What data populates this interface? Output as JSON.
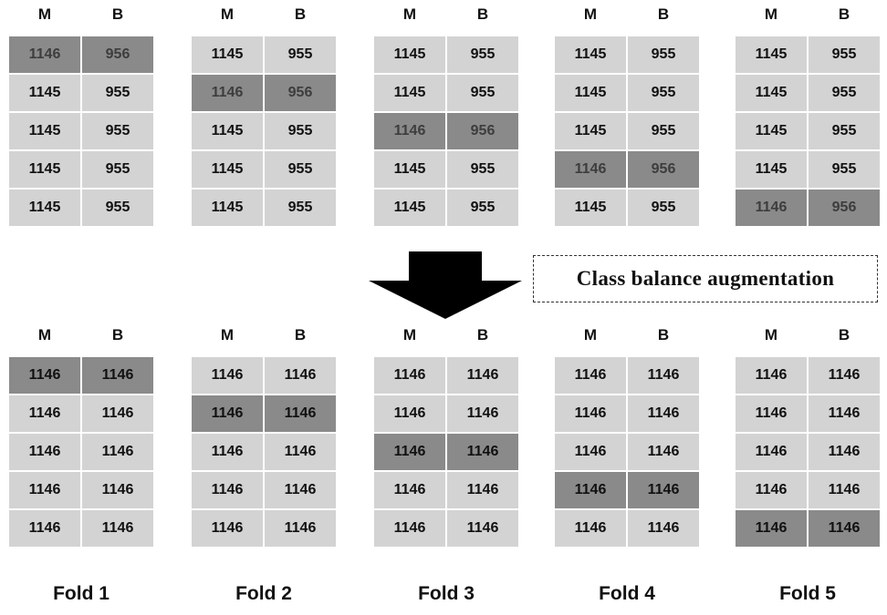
{
  "colors": {
    "cell": "#d3d3d3",
    "highlight_cell": "#8a8a8a",
    "text": "#111111"
  },
  "headers": {
    "m": "M",
    "b": "B"
  },
  "callout": {
    "label": "Class balance augmentation"
  },
  "arrow": {
    "direction": "down",
    "icon": "down-arrow-icon"
  },
  "top": {
    "folds": [
      {
        "rows": [
          [
            "1146",
            "956"
          ],
          [
            "1145",
            "955"
          ],
          [
            "1145",
            "955"
          ],
          [
            "1145",
            "955"
          ],
          [
            "1145",
            "955"
          ]
        ],
        "highlight_row": 0
      },
      {
        "rows": [
          [
            "1145",
            "955"
          ],
          [
            "1146",
            "956"
          ],
          [
            "1145",
            "955"
          ],
          [
            "1145",
            "955"
          ],
          [
            "1145",
            "955"
          ]
        ],
        "highlight_row": 1
      },
      {
        "rows": [
          [
            "1145",
            "955"
          ],
          [
            "1145",
            "955"
          ],
          [
            "1146",
            "956"
          ],
          [
            "1145",
            "955"
          ],
          [
            "1145",
            "955"
          ]
        ],
        "highlight_row": 2
      },
      {
        "rows": [
          [
            "1145",
            "955"
          ],
          [
            "1145",
            "955"
          ],
          [
            "1145",
            "955"
          ],
          [
            "1146",
            "956"
          ],
          [
            "1145",
            "955"
          ]
        ],
        "highlight_row": 3
      },
      {
        "rows": [
          [
            "1145",
            "955"
          ],
          [
            "1145",
            "955"
          ],
          [
            "1145",
            "955"
          ],
          [
            "1145",
            "955"
          ],
          [
            "1146",
            "956"
          ]
        ],
        "highlight_row": 4
      }
    ]
  },
  "bottom": {
    "folds": [
      {
        "rows": [
          [
            "1146",
            "1146"
          ],
          [
            "1146",
            "1146"
          ],
          [
            "1146",
            "1146"
          ],
          [
            "1146",
            "1146"
          ],
          [
            "1146",
            "1146"
          ]
        ],
        "highlight_row": 0
      },
      {
        "rows": [
          [
            "1146",
            "1146"
          ],
          [
            "1146",
            "1146"
          ],
          [
            "1146",
            "1146"
          ],
          [
            "1146",
            "1146"
          ],
          [
            "1146",
            "1146"
          ]
        ],
        "highlight_row": 1
      },
      {
        "rows": [
          [
            "1146",
            "1146"
          ],
          [
            "1146",
            "1146"
          ],
          [
            "1146",
            "1146"
          ],
          [
            "1146",
            "1146"
          ],
          [
            "1146",
            "1146"
          ]
        ],
        "highlight_row": 2
      },
      {
        "rows": [
          [
            "1146",
            "1146"
          ],
          [
            "1146",
            "1146"
          ],
          [
            "1146",
            "1146"
          ],
          [
            "1146",
            "1146"
          ],
          [
            "1146",
            "1146"
          ]
        ],
        "highlight_row": 3
      },
      {
        "rows": [
          [
            "1146",
            "1146"
          ],
          [
            "1146",
            "1146"
          ],
          [
            "1146",
            "1146"
          ],
          [
            "1146",
            "1146"
          ],
          [
            "1146",
            "1146"
          ]
        ],
        "highlight_row": 4
      }
    ]
  },
  "fold_labels": [
    "Fold 1",
    "Fold 2",
    "Fold 3",
    "Fold 4",
    "Fold 5"
  ]
}
